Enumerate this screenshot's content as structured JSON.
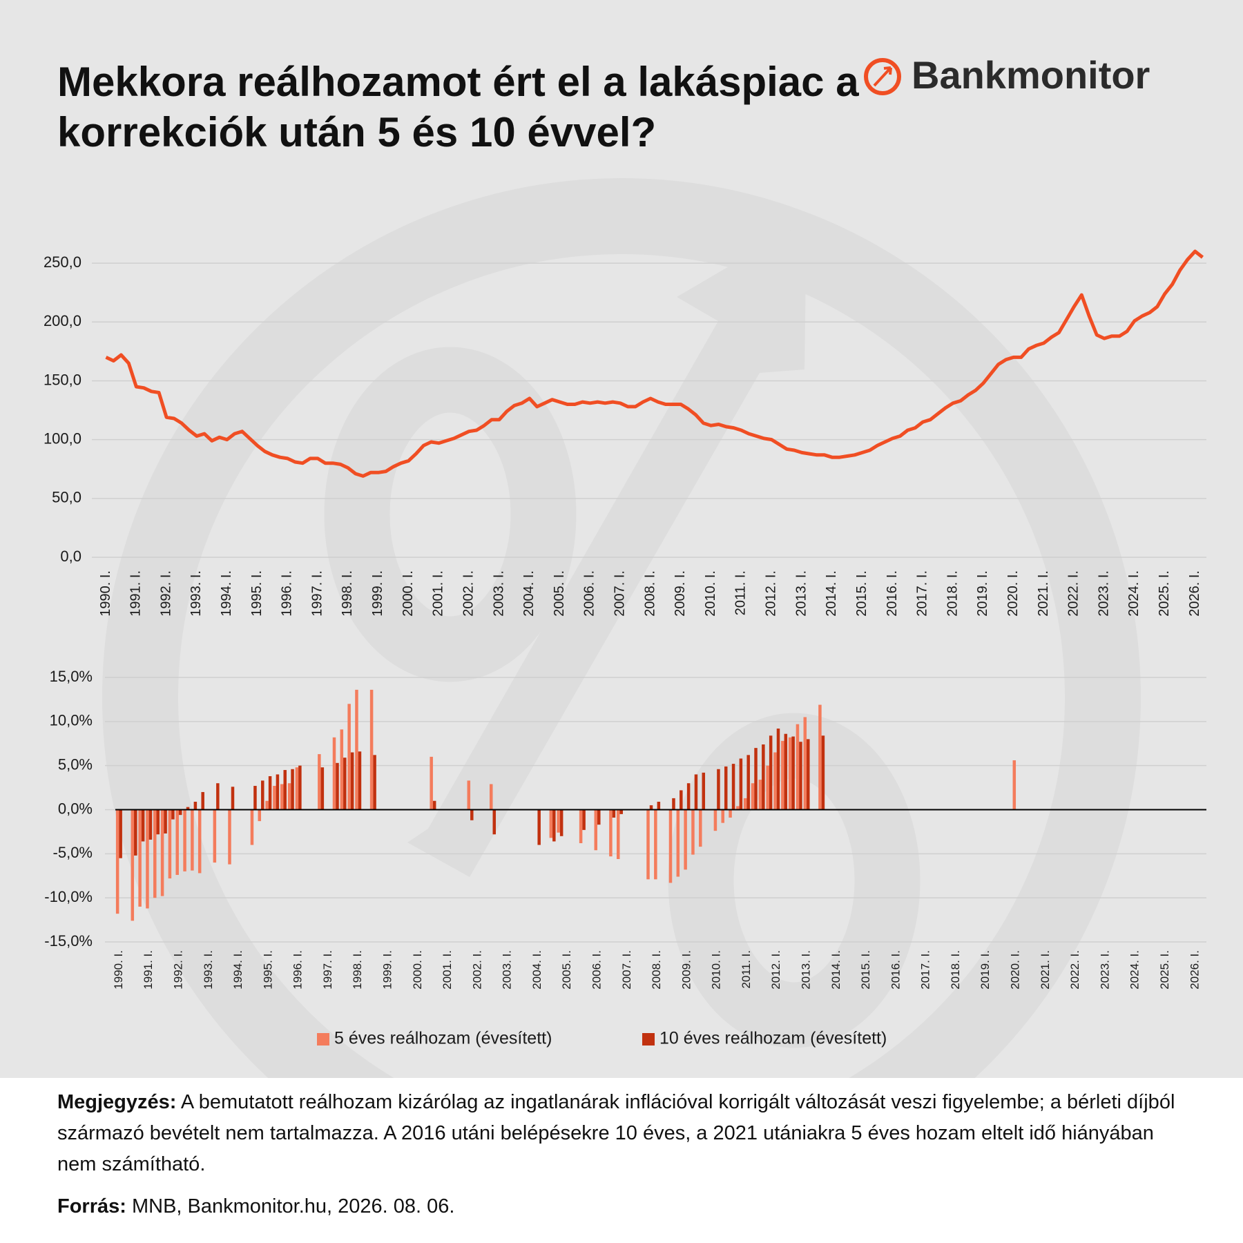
{
  "header": {
    "logo": "Bankmonitor"
  },
  "chart_data": [
    {
      "type": "line",
      "title": "Mekkora reálhozamot ért el a lakáspiac a korrekciók után 5 és 10 évvel?",
      "color": "#f04e23",
      "grid": true,
      "ylim": [
        0,
        270
      ],
      "yticks": [
        {
          "value": 0,
          "label": "0,0"
        },
        {
          "value": 50,
          "label": "50,0"
        },
        {
          "value": 100,
          "label": "100,0"
        },
        {
          "value": 150,
          "label": "150,0"
        },
        {
          "value": 200,
          "label": "200,0"
        },
        {
          "value": 250,
          "label": "250,0"
        }
      ],
      "categories": [
        "1990. I.",
        null,
        null,
        null,
        "1991. I.",
        null,
        null,
        null,
        "1992. I.",
        null,
        null,
        null,
        "1993. I.",
        null,
        null,
        null,
        "1994. I.",
        null,
        null,
        null,
        "1995. I.",
        null,
        null,
        null,
        "1996. I.",
        null,
        null,
        null,
        "1997. I.",
        null,
        null,
        null,
        "1998. I.",
        null,
        null,
        null,
        "1999. I.",
        null,
        null,
        null,
        "2000. I.",
        null,
        null,
        null,
        "2001. I.",
        null,
        null,
        null,
        "2002. I.",
        null,
        null,
        null,
        "2003. I.",
        null,
        null,
        null,
        "2004. I.",
        null,
        null,
        null,
        "2005. I.",
        null,
        null,
        null,
        "2006. I.",
        null,
        null,
        null,
        "2007. I.",
        null,
        null,
        null,
        "2008. I.",
        null,
        null,
        null,
        "2009. I.",
        null,
        null,
        null,
        "2010. I.",
        null,
        null,
        null,
        "2011. I.",
        null,
        null,
        null,
        "2012. I.",
        null,
        null,
        null,
        "2013. I.",
        null,
        null,
        null,
        "2014. I.",
        null,
        null,
        null,
        "2015. I.",
        null,
        null,
        null,
        "2016. I.",
        null,
        null,
        null,
        "2017. I.",
        null,
        null,
        null,
        "2018. I.",
        null,
        null,
        null,
        "2019. I.",
        null,
        null,
        null,
        "2020. I.",
        null,
        null,
        null,
        "2021. I.",
        null,
        null,
        null,
        "2022. I.",
        null,
        null,
        null,
        "2023. I.",
        null,
        null,
        null,
        "2024. I.",
        null,
        null,
        null,
        "2025. I.",
        null,
        null,
        null,
        "2026. I.",
        null
      ],
      "values": [
        170,
        167,
        172,
        165,
        145,
        144,
        141,
        140,
        119,
        118,
        114,
        108,
        103,
        105,
        99,
        102,
        100,
        105,
        107,
        101,
        95,
        90,
        87,
        85,
        84,
        81,
        80,
        84,
        84,
        80,
        80,
        79,
        76,
        71,
        69,
        72,
        72,
        73,
        77,
        80,
        82,
        88,
        95,
        98,
        97,
        99,
        101,
        104,
        107,
        108,
        112,
        117,
        117,
        124,
        129,
        131,
        135,
        128,
        131,
        134,
        132,
        130,
        130,
        132,
        131,
        132,
        131,
        132,
        131,
        128,
        128,
        132,
        135,
        132,
        130,
        130,
        130,
        126,
        121,
        114,
        112,
        113,
        111,
        110,
        108,
        105,
        103,
        101,
        100,
        96,
        92,
        91,
        89,
        88,
        87,
        87,
        85,
        85,
        86,
        87,
        89,
        91,
        95,
        98,
        101,
        103,
        108,
        110,
        115,
        117,
        122,
        127,
        131,
        133,
        138,
        142,
        148,
        156,
        164,
        168,
        170,
        170,
        177,
        180,
        182,
        187,
        191,
        202,
        213,
        223,
        205,
        189,
        186,
        188,
        188,
        192,
        201,
        205,
        208,
        213,
        224,
        232,
        244,
        253,
        260,
        255
      ]
    },
    {
      "type": "bar",
      "grid": true,
      "ylim": [
        -15,
        15
      ],
      "yticks": [
        {
          "value": -15,
          "label": "-15,0%"
        },
        {
          "value": -10,
          "label": "-10,0%"
        },
        {
          "value": -5,
          "label": "-5,0%"
        },
        {
          "value": 0,
          "label": "0,0%"
        },
        {
          "value": 5,
          "label": "5,0%"
        },
        {
          "value": 10,
          "label": "10,0%"
        },
        {
          "value": 15,
          "label": "15,0%"
        }
      ],
      "categories": [
        "1990. I.",
        null,
        null,
        null,
        "1991. I.",
        null,
        null,
        null,
        "1992. I.",
        null,
        null,
        null,
        "1993. I.",
        null,
        null,
        null,
        "1994. I.",
        null,
        null,
        null,
        "1995. I.",
        null,
        null,
        null,
        "1996. I.",
        null,
        null,
        null,
        "1997. I.",
        null,
        null,
        null,
        "1998. I.",
        null,
        null,
        null,
        "1999. I.",
        null,
        null,
        null,
        "2000. I.",
        null,
        null,
        null,
        "2001. I.",
        null,
        null,
        null,
        "2002. I.",
        null,
        null,
        null,
        "2003. I.",
        null,
        null,
        null,
        "2004. I.",
        null,
        null,
        null,
        "2005. I.",
        null,
        null,
        null,
        "2006. I.",
        null,
        null,
        null,
        "2007. I.",
        null,
        null,
        null,
        "2008. I.",
        null,
        null,
        null,
        "2009. I.",
        null,
        null,
        null,
        "2010. I.",
        null,
        null,
        null,
        "2011. I.",
        null,
        null,
        null,
        "2012. I.",
        null,
        null,
        null,
        "2013. I.",
        null,
        null,
        null,
        "2014. I.",
        null,
        null,
        null,
        "2015. I.",
        null,
        null,
        null,
        "2016. I.",
        null,
        null,
        null,
        "2017. I.",
        null,
        null,
        null,
        "2018. I.",
        null,
        null,
        null,
        "2019. I.",
        null,
        null,
        null,
        "2020. I.",
        null,
        null,
        null,
        "2021. I.",
        null,
        null,
        null,
        "2022. I.",
        null,
        null,
        null,
        "2023. I.",
        null,
        null,
        null,
        "2024. I.",
        null,
        null,
        null,
        "2025. I.",
        null,
        null,
        null,
        "2026. I.",
        null
      ],
      "series": [
        {
          "name": "5 éves reálhozam (évesített)",
          "color": "#f47c5c",
          "values": [
            -11.8,
            null,
            -12.6,
            -11.0,
            -11.2,
            -10.0,
            -9.8,
            -7.8,
            -7.4,
            -7.0,
            -6.9,
            -7.2,
            null,
            -6.0,
            null,
            -6.2,
            null,
            null,
            -4.0,
            -1.3,
            1.0,
            2.7,
            2.9,
            3.0,
            4.8,
            null,
            null,
            6.3,
            null,
            8.2,
            9.1,
            12.0,
            13.6,
            null,
            13.6,
            null,
            null,
            null,
            null,
            null,
            null,
            null,
            6.0,
            null,
            null,
            null,
            null,
            3.3,
            null,
            null,
            2.9,
            null,
            null,
            null,
            null,
            null,
            null,
            null,
            -3.2,
            -2.6,
            null,
            null,
            -3.8,
            null,
            -4.6,
            null,
            -5.3,
            -5.6,
            null,
            null,
            null,
            -7.9,
            -7.9,
            null,
            -8.3,
            -7.6,
            -6.8,
            -5.1,
            -4.2,
            null,
            -2.4,
            -1.5,
            -0.9,
            0.4,
            1.3,
            3.0,
            3.4,
            5.0,
            6.5,
            7.8,
            8.2,
            9.7,
            10.5,
            null,
            11.9,
            null,
            null,
            null,
            null,
            null,
            null,
            null,
            null,
            null,
            null,
            null,
            null,
            null,
            null,
            null,
            null,
            null,
            null,
            null,
            null,
            null,
            null,
            null,
            null,
            null,
            5.6,
            null,
            null,
            null,
            null,
            null,
            null,
            null,
            null,
            null,
            null,
            null,
            null,
            null,
            null,
            null,
            null,
            null,
            null,
            null,
            null,
            null,
            null,
            null,
            null,
            null
          ]
        },
        {
          "name": "10 éves reálhozam (évesített)",
          "color": "#c1310f",
          "values": [
            -5.5,
            null,
            -5.2,
            -3.6,
            -3.4,
            -2.8,
            -2.7,
            -1.1,
            -0.6,
            0.3,
            0.9,
            2.0,
            null,
            3.0,
            null,
            2.6,
            null,
            null,
            2.7,
            3.3,
            3.8,
            4.0,
            4.5,
            4.6,
            5.0,
            null,
            null,
            4.8,
            null,
            5.3,
            5.9,
            6.5,
            6.6,
            null,
            6.2,
            null,
            null,
            null,
            null,
            null,
            null,
            null,
            1.0,
            null,
            null,
            null,
            null,
            -1.2,
            null,
            null,
            -2.8,
            null,
            null,
            null,
            null,
            null,
            -4.0,
            null,
            -3.6,
            -3.0,
            null,
            null,
            -2.3,
            null,
            -1.7,
            null,
            -0.9,
            -0.5,
            null,
            null,
            null,
            0.5,
            0.9,
            null,
            1.3,
            2.2,
            3.0,
            4.0,
            4.2,
            null,
            4.6,
            4.9,
            5.2,
            5.8,
            6.2,
            7.0,
            7.4,
            8.4,
            9.2,
            8.6,
            8.3,
            7.7,
            8.0,
            null,
            8.4,
            null,
            null,
            null,
            null,
            null,
            null,
            null,
            null,
            null,
            null,
            null,
            null,
            null,
            null,
            null,
            null,
            null,
            null,
            null,
            null,
            null,
            null,
            null,
            null,
            null,
            null,
            null,
            null,
            null,
            null,
            null,
            null,
            null,
            null,
            null,
            null,
            null,
            null,
            null,
            null,
            null,
            null,
            null,
            null,
            null,
            null,
            null,
            null,
            null,
            null,
            null
          ]
        }
      ]
    }
  ],
  "footer": {
    "note_label": "Megjegyzés:",
    "note": "A bemutatott reálhozam kizárólag az ingatlanárak inflációval korrigált változását veszi figyelembe; a bérleti díjból származó bevételt nem tartalmazza. A 2016 utáni belépésekre 10 éves, a 2021 utániakra 5 éves hozam eltelt idő hiányában nem számítható.",
    "source_label": "Forrás:",
    "source": "MNB, Bankmonitor.hu, 2026. 08. 06."
  }
}
